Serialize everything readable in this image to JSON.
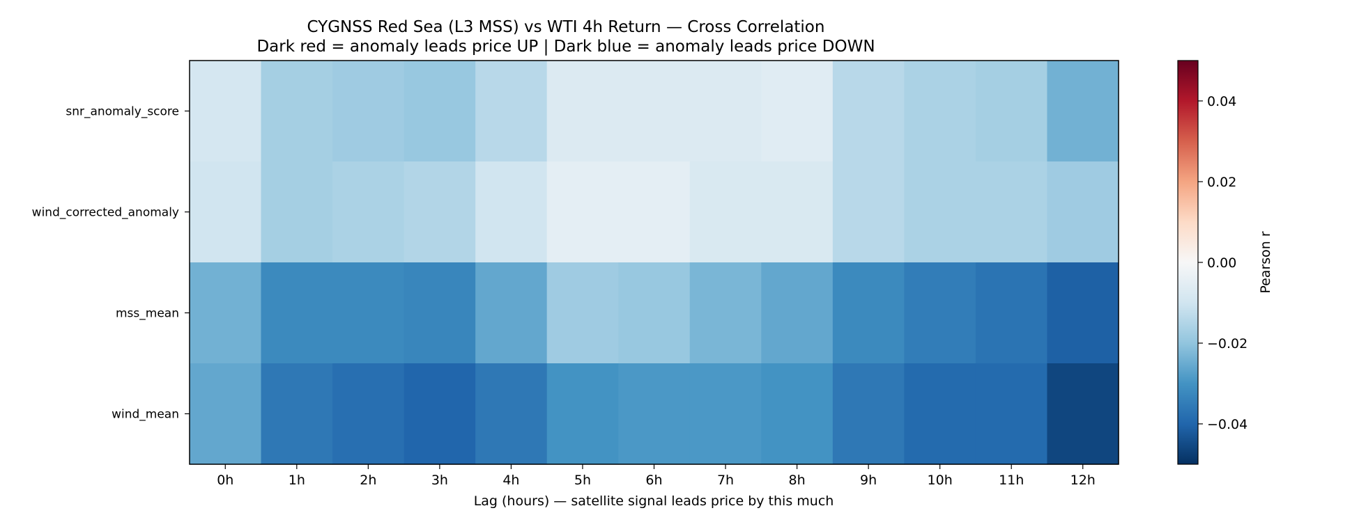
{
  "chart_data": {
    "type": "heatmap",
    "title": "CYGNSS Red Sea (L3 MSS) vs WTI 4h Return — Cross Correlation",
    "subtitle": "Dark red = anomaly leads price UP | Dark blue = anomaly leads price DOWN",
    "xlabel": "Lag (hours) — satellite signal leads price by this much",
    "ylabel": "",
    "x_categories": [
      "0h",
      "1h",
      "2h",
      "3h",
      "4h",
      "5h",
      "6h",
      "7h",
      "8h",
      "9h",
      "10h",
      "11h",
      "12h"
    ],
    "y_categories": [
      "snr_anomaly_score",
      "wind_corrected_anomaly",
      "mss_mean",
      "wind_mean"
    ],
    "values": [
      [
        -0.009,
        -0.017,
        -0.018,
        -0.019,
        -0.014,
        -0.007,
        -0.007,
        -0.007,
        -0.006,
        -0.014,
        -0.016,
        -0.017,
        -0.024
      ],
      [
        -0.01,
        -0.017,
        -0.016,
        -0.015,
        -0.01,
        -0.005,
        -0.005,
        -0.008,
        -0.008,
        -0.014,
        -0.016,
        -0.016,
        -0.018
      ],
      [
        -0.024,
        -0.032,
        -0.032,
        -0.033,
        -0.026,
        -0.018,
        -0.019,
        -0.023,
        -0.026,
        -0.032,
        -0.035,
        -0.037,
        -0.041
      ],
      [
        -0.026,
        -0.036,
        -0.038,
        -0.04,
        -0.036,
        -0.03,
        -0.029,
        -0.029,
        -0.03,
        -0.036,
        -0.039,
        -0.039,
        -0.046
      ]
    ],
    "colorbar": {
      "label": "Pearson r",
      "vmin": -0.05,
      "vmax": 0.05,
      "ticks": [
        -0.04,
        -0.02,
        0.0,
        0.02,
        0.04
      ],
      "tick_labels": [
        "−0.04",
        "−0.02",
        "0.00",
        "0.02",
        "0.04"
      ],
      "colormap": "RdBu_r"
    }
  }
}
